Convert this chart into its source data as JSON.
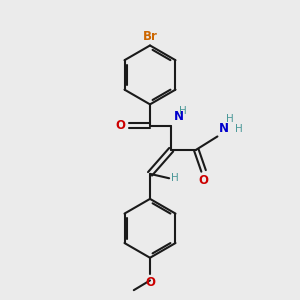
{
  "bg_color": "#ebebeb",
  "bond_color": "#1a1a1a",
  "bond_width": 1.5,
  "atom_colors": {
    "Br": "#cc6600",
    "O": "#cc0000",
    "N": "#0000cc",
    "H": "#4a9898",
    "C": "#1a1a1a"
  },
  "font_size": 8.5,
  "fig_size": [
    3.0,
    3.0
  ],
  "dpi": 100
}
